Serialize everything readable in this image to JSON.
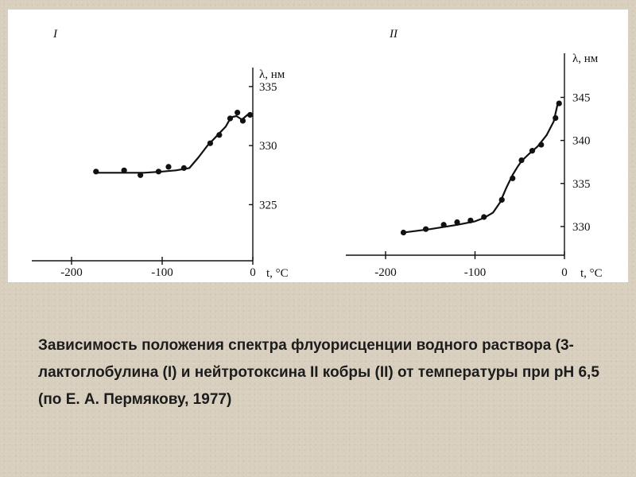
{
  "caption": "Зависимость положения спектра флуорисценции водного раствора (3-лактоглобулина (I) и нейтротоксина II кобры (II) от температуры при pH 6,5 (по Е. А. Пермякову, 1977)",
  "chart_data": [
    {
      "type": "scatter",
      "panel_label": "I",
      "xlabel": "t, °C",
      "ylabel": "λ, нм",
      "xlim": [
        -200,
        0
      ],
      "ylim": [
        322,
        336
      ],
      "x_ticks": [
        -200,
        -100,
        0
      ],
      "y_ticks": [
        325,
        330,
        335
      ],
      "series": [
        {
          "x": [
            -173,
            -142,
            -124,
            -104,
            -93,
            -76,
            -47,
            -37,
            -25,
            -17,
            -11,
            -3
          ],
          "y": [
            327.8,
            327.9,
            327.5,
            327.8,
            328.2,
            328.1,
            330.2,
            330.9,
            332.3,
            332.8,
            332.1,
            332.6
          ]
        }
      ],
      "fit_curve": {
        "x": [
          -173,
          -150,
          -120,
          -100,
          -85,
          -70,
          -60,
          -50,
          -40,
          -30,
          -24,
          -18,
          -12,
          -6,
          -1
        ],
        "y": [
          327.7,
          327.7,
          327.7,
          327.8,
          327.9,
          328.1,
          329.0,
          330.0,
          330.8,
          331.6,
          332.4,
          332.5,
          332.2,
          332.6,
          332.7
        ]
      }
    },
    {
      "type": "scatter",
      "panel_label": "II",
      "xlabel": "t, °C",
      "ylabel": "λ, нм",
      "xlim": [
        -200,
        0
      ],
      "ylim": [
        327.5,
        348
      ],
      "x_ticks": [
        -200,
        -100,
        0
      ],
      "y_ticks": [
        330,
        335,
        340,
        345
      ],
      "series": [
        {
          "x": [
            -180,
            -155,
            -135,
            -120,
            -105,
            -90,
            -70,
            -58,
            -48,
            -36,
            -26,
            -10,
            -6
          ],
          "y": [
            329.3,
            329.7,
            330.2,
            330.5,
            330.7,
            331.1,
            333.1,
            335.6,
            337.7,
            338.8,
            339.5,
            342.6,
            344.3
          ]
        }
      ],
      "fit_curve": {
        "x": [
          -180,
          -150,
          -120,
          -100,
          -90,
          -80,
          -72,
          -65,
          -58,
          -52,
          -48,
          -40,
          -30,
          -20,
          -12,
          -7
        ],
        "y": [
          329.3,
          329.7,
          330.2,
          330.6,
          331.0,
          331.6,
          332.8,
          334.5,
          336.0,
          337.0,
          337.6,
          338.4,
          339.3,
          340.6,
          342.2,
          344.5
        ]
      }
    }
  ]
}
